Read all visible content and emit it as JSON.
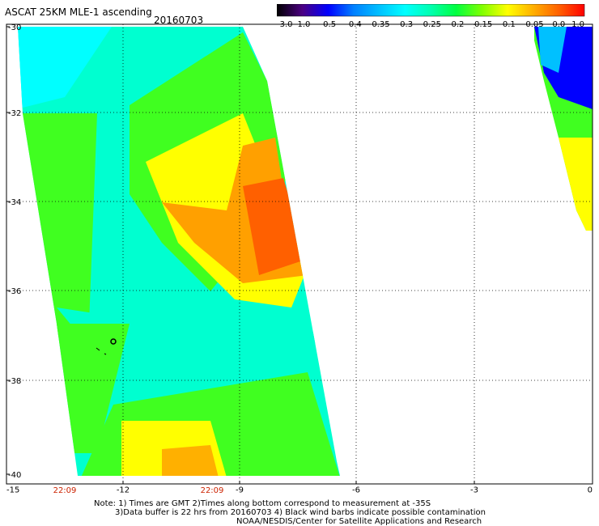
{
  "header": {
    "title": "ASCAT 25KM MLE-1 ascending",
    "date": "20160703"
  },
  "colorbar": {
    "tick_labels": [
      "-3.0",
      "-1.0",
      "-0.5",
      "-0.4",
      "-0.35",
      "-0.3",
      "-0.25",
      "-0.2",
      "-0.15",
      "-0.1",
      "-0.05",
      "0.0",
      "1.0"
    ],
    "colors": [
      "#000000",
      "#4b0082",
      "#0000ff",
      "#0080ff",
      "#00c0ff",
      "#00ffff",
      "#00ffb0",
      "#00ff40",
      "#80ff00",
      "#ffff00",
      "#ffb000",
      "#ff6000",
      "#ff0000"
    ]
  },
  "axes": {
    "x_ticks": [
      "-15",
      "-12",
      "-9",
      "-6",
      "-3",
      "0"
    ],
    "y_ticks": [
      "-30",
      "-32",
      "-34",
      "-36",
      "-38",
      "-40"
    ],
    "time_labels": [
      "22:09",
      "22:09"
    ]
  },
  "notes": {
    "line1": "Note: 1) Times are GMT 2)Times along bottom correspond to measurement at -35S",
    "line2": "3)Data buffer is 22 hrs from 20160703 4) Black wind barbs indicate possible contamination",
    "line3": "NOAA/NESDIS/Center for Satellite Applications and Research"
  }
}
